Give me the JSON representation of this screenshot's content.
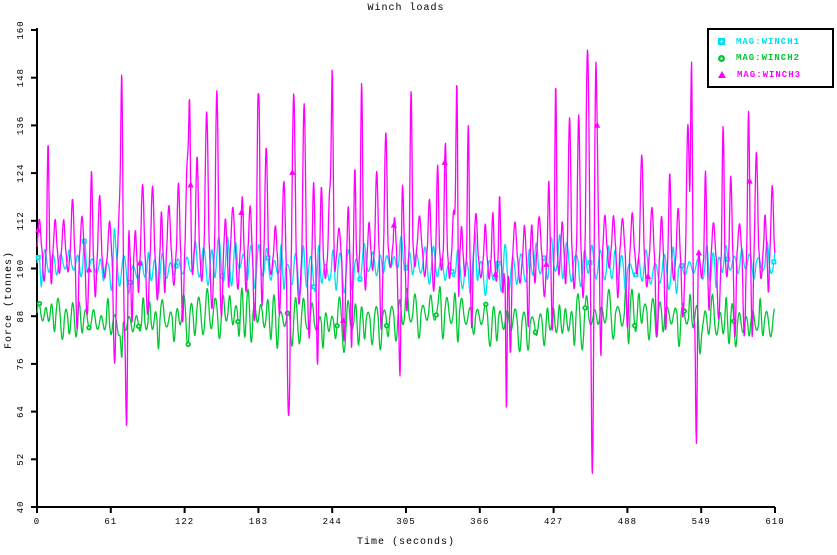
{
  "title": "Winch loads",
  "axes": {
    "x_label": "Time (seconds)",
    "y_label": "Force (tonnes)"
  },
  "colors": {
    "axis": "#000000",
    "background": "#ffffff",
    "winch1": "#00e0f0",
    "winch2": "#00c832",
    "winch3": "#ff00ff"
  },
  "legend": {
    "position": "top-right",
    "entries": [
      {
        "label": "MAG:WINCH1",
        "marker": "square",
        "color": "#00e0f0"
      },
      {
        "label": "MAG:WINCH2",
        "marker": "circle",
        "color": "#00c832"
      },
      {
        "label": "MAG:WINCH3",
        "marker": "triangle",
        "color": "#ff00ff"
      }
    ]
  },
  "chart_data": {
    "type": "line",
    "title": "Winch loads",
    "xlabel": "Time (seconds)",
    "ylabel": "Force (tonnes)",
    "xlim": [
      0,
      610
    ],
    "ylim": [
      40,
      160
    ],
    "x_ticks": [
      0,
      61,
      122,
      183,
      244,
      305,
      366,
      427,
      488,
      549,
      610
    ],
    "y_ticks": [
      40,
      52,
      64,
      76,
      88,
      100,
      112,
      124,
      136,
      148,
      160
    ],
    "grid": false,
    "legend_position": "top-right",
    "series": [
      {
        "name": "MAG:WINCH1",
        "color": "#00e0f0",
        "marker": "square",
        "approx_mean": 100,
        "approx_min": 93,
        "approx_max": 110,
        "dominant_period_seconds": 6.3,
        "marker_every_seconds": 38,
        "marker_offset_seconds": 1,
        "synth": {
          "seed": 7,
          "base": 100.4,
          "slow_amp": 1.2,
          "slow_period": 141,
          "slow_phase": 0.9,
          "cycle_period": 6.3,
          "sharp": 1.0,
          "up_min": 1.4,
          "up_var": 5.2,
          "up_pow": 1.6,
          "dn_min": 1.4,
          "dn_var": 4.8,
          "dn_pow": 1.6
        },
        "events": [
          {
            "t": 64,
            "value": 110
          },
          {
            "t": 362,
            "value": 109
          },
          {
            "t": 432,
            "value": 108.5
          }
        ]
      },
      {
        "name": "MAG:WINCH2",
        "color": "#00c832",
        "marker": "circle",
        "approx_mean": 88,
        "approx_min": 77,
        "approx_max": 96,
        "dominant_period_seconds": 6.0,
        "marker_every_seconds": 41,
        "marker_offset_seconds": 2,
        "synth": {
          "seed": 13,
          "base": 87.6,
          "slow_amp": 1.4,
          "slow_period": 171,
          "slow_phase": 2.1,
          "cycle_period": 6.0,
          "sharp": 1.0,
          "up_min": 1.6,
          "up_var": 5.2,
          "up_pow": 1.5,
          "dn_min": 1.8,
          "dn_var": 6.4,
          "dn_pow": 1.7
        },
        "events": [
          {
            "t": 70,
            "value": 77.5
          },
          {
            "t": 333,
            "value": 95.5
          },
          {
            "t": 548,
            "value": 78.5
          }
        ]
      },
      {
        "name": "MAG:WINCH3",
        "color": "#ff00ff",
        "marker": "triangle",
        "approx_mean": 107,
        "approx_min": 48,
        "approx_max": 156,
        "dominant_period_seconds": 7.0,
        "marker_every_seconds": 42,
        "marker_offset_seconds": 1,
        "synth": {
          "seed": 3,
          "base": 104.0,
          "slow_amp": 1.6,
          "slow_period": 157,
          "slow_phase": 2.0,
          "cycle_period": 7.0,
          "sharp": 1.5,
          "up_min": 7.0,
          "up_var": 36.0,
          "up_pow": 2.3,
          "dn_min": 5.0,
          "dn_var": 25.0,
          "dn_pow": 2.5
        },
        "events": [
          {
            "t": 70,
            "value": 149
          },
          {
            "t": 74,
            "value": 60
          },
          {
            "t": 126,
            "value": 143
          },
          {
            "t": 183,
            "value": 144
          },
          {
            "t": 208,
            "value": 63
          },
          {
            "t": 244,
            "value": 150
          },
          {
            "t": 300,
            "value": 73
          },
          {
            "t": 347,
            "value": 147
          },
          {
            "t": 388,
            "value": 64
          },
          {
            "t": 455,
            "value": 155
          },
          {
            "t": 459,
            "value": 48
          },
          {
            "t": 462,
            "value": 152
          },
          {
            "t": 541,
            "value": 152
          },
          {
            "t": 545,
            "value": 56
          }
        ]
      }
    ]
  }
}
